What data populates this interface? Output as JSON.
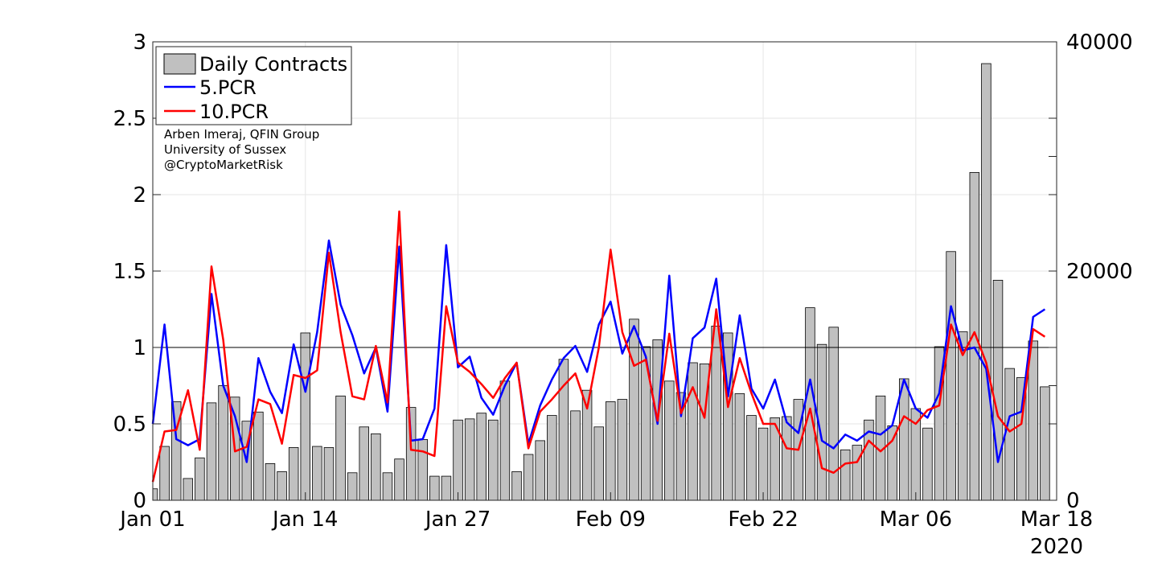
{
  "chart_data": {
    "type": "bar+line",
    "x_start": "2020-01-01",
    "x_tick_labels": [
      "Jan 01",
      "Jan 14",
      "Jan 27",
      "Feb 09",
      "Feb 22",
      "Mar 06",
      "Mar 18"
    ],
    "x_tick_dates": [
      "2020-01-01",
      "2020-01-14",
      "2020-01-27",
      "2020-02-09",
      "2020-02-22",
      "2020-03-06",
      "2020-03-18"
    ],
    "x_year_label": "2020",
    "y_left": {
      "lim": [
        0,
        3
      ],
      "ticks": [
        "0",
        "0.5",
        "1",
        "1.5",
        "2",
        "2.5",
        "3"
      ]
    },
    "y_right": {
      "lim": [
        0,
        40000
      ],
      "ticks": [
        "0",
        "20000",
        "40000"
      ]
    },
    "reference_line": 1,
    "grid": true,
    "legend_position": "top-left",
    "legend": [
      "Daily Contracts",
      "5.PCR",
      "10.PCR"
    ],
    "credits": [
      "Arben Imeraj, QFIN Group",
      "University of Sussex",
      "@CryptoMarketRisk"
    ],
    "colors": {
      "bars": "#c0c0c0",
      "pcr5": "#0000ff",
      "pcr10": "#ff0000"
    },
    "series": [
      {
        "name": "Daily Contracts",
        "axis": "right",
        "values": [
          1000,
          4700,
          8600,
          1900,
          3700,
          8500,
          10000,
          9000,
          6900,
          7700,
          3200,
          2500,
          4600,
          14600,
          4700,
          4600,
          9100,
          2400,
          6400,
          5800,
          2400,
          3600,
          8100,
          5300,
          2100,
          2100,
          7000,
          7100,
          7600,
          7000,
          10400,
          2500,
          4000,
          5200,
          7400,
          12300,
          7800,
          9600,
          6400,
          8600,
          8800,
          15800,
          13400,
          14000,
          10400,
          9400,
          12000,
          11900,
          15200,
          14600,
          9300,
          7400,
          6300,
          7200,
          7300,
          8800,
          16800,
          13600,
          15100,
          4400,
          4800,
          7000,
          9100,
          6500,
          10600,
          8000,
          6300,
          13400,
          21700,
          14700,
          28600,
          38100,
          19200,
          11500,
          10700,
          13900,
          9900
        ],
        "note": "values in contracts; last bar (Mar 17) shown as 9900"
      },
      {
        "name": "5.PCR",
        "axis": "left",
        "values": [
          0.5,
          1.15,
          0.4,
          0.36,
          0.4,
          1.35,
          0.75,
          0.55,
          0.25,
          0.93,
          0.71,
          0.57,
          1.02,
          0.71,
          1.1,
          1.7,
          1.28,
          1.08,
          0.83,
          1.0,
          0.58,
          1.66,
          0.39,
          0.4,
          0.6,
          1.67,
          0.87,
          0.94,
          0.67,
          0.56,
          0.75,
          0.9,
          0.37,
          0.62,
          0.79,
          0.93,
          1.01,
          0.84,
          1.15,
          1.3,
          0.96,
          1.14,
          0.94,
          0.5,
          1.47,
          0.55,
          1.06,
          1.13,
          1.45,
          0.68,
          1.21,
          0.73,
          0.6,
          0.79,
          0.51,
          0.44,
          0.79,
          0.39,
          0.34,
          0.43,
          0.39,
          0.45,
          0.43,
          0.49,
          0.79,
          0.6,
          0.54,
          0.7,
          1.27,
          0.98,
          1.0,
          0.86,
          0.25,
          0.55,
          0.58,
          1.2,
          1.25
        ]
      },
      {
        "name": "10.PCR",
        "axis": "left",
        "values": [
          0.12,
          0.45,
          0.46,
          0.72,
          0.33,
          1.53,
          1.05,
          0.32,
          0.35,
          0.66,
          0.63,
          0.37,
          0.82,
          0.8,
          0.85,
          1.62,
          1.1,
          0.68,
          0.66,
          1.01,
          0.64,
          1.89,
          0.33,
          0.32,
          0.29,
          1.27,
          0.9,
          0.84,
          0.76,
          0.67,
          0.8,
          0.9,
          0.34,
          0.58,
          0.66,
          0.75,
          0.83,
          0.6,
          1.0,
          1.64,
          1.1,
          0.88,
          0.92,
          0.52,
          1.09,
          0.57,
          0.74,
          0.54,
          1.25,
          0.61,
          0.93,
          0.7,
          0.5,
          0.5,
          0.34,
          0.33,
          0.6,
          0.21,
          0.18,
          0.24,
          0.25,
          0.39,
          0.32,
          0.39,
          0.55,
          0.5,
          0.59,
          0.62,
          1.15,
          0.95,
          1.1,
          0.9,
          0.55,
          0.45,
          0.5,
          1.12,
          1.07
        ]
      }
    ]
  }
}
